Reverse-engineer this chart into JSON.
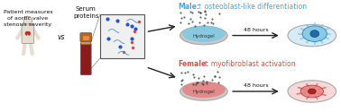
{
  "bg_color": "#ffffff",
  "left_text": "Patient measures\nof aortic valve\nstenosis severity",
  "vs_text": "vs",
  "serum_text": "Serum\nproteins",
  "male_label": "Male:",
  "male_arrow": "↑",
  "male_outcome": " osteoblast-like differentiation",
  "female_label": "Female:",
  "female_arrow": "↑",
  "female_outcome": " myofibroblast activation",
  "hydrogel_text": "Hydrogel",
  "hours_text": "48 hours",
  "male_color": "#4da6e8",
  "female_color": "#e84a4a",
  "hydrogel_blue": "#7ec8e3",
  "hydrogel_pink": "#e88080",
  "dish_color": "#c8c8c8",
  "dish_edge": "#aaaaaa",
  "tube_red": "#8b1a1a",
  "tube_orange": "#c8600a",
  "tube_yellow": "#d4a017",
  "box_bg": "#f0f0f0",
  "dot_blue": "#2255cc",
  "dot_red": "#cc2222",
  "line_blue": "#4488cc",
  "arrow_color": "#222222",
  "text_color": "#111111",
  "figsize": [
    3.78,
    1.25
  ],
  "dpi": 100
}
